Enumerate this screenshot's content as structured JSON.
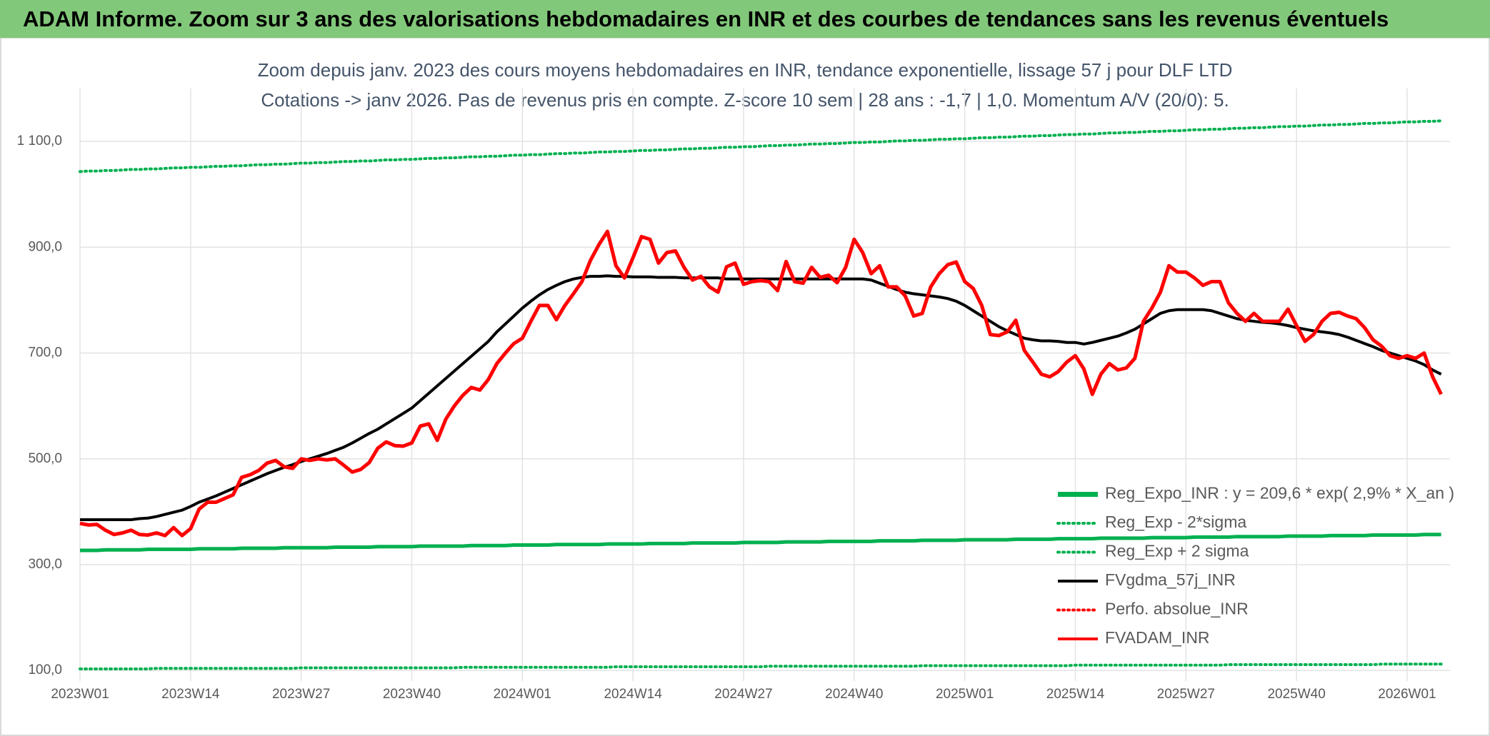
{
  "header": {
    "title": "ADAM Informe. Zoom sur 3 ans des valorisations hebdomadaires en INR et des courbes de tendances sans les revenus éventuels"
  },
  "chart_data": {
    "type": "line",
    "title": "Zoom depuis janv. 2023 des cours moyens hebdomadaires en INR, tendance exponentielle, lissage 57 j pour DLF LTD",
    "subtitle": "Cotations -> janv 2026. Pas de revenus pris en compte. Z-score 10 sem | 28 ans : -1,7 | 1,0. Momentum A/V (20/0): 5.",
    "ylim": [
      80,
      1200
    ],
    "yticks": [
      {
        "value": 100,
        "label": "100,0"
      },
      {
        "value": 300,
        "label": "300,0"
      },
      {
        "value": 500,
        "label": "500,0"
      },
      {
        "value": 700,
        "label": "700,0"
      },
      {
        "value": 900,
        "label": "900,0"
      },
      {
        "value": 1100,
        "label": "1 100,0"
      }
    ],
    "grid": true,
    "legend_position": "bottom-right",
    "categories": [
      "2023W01",
      null,
      null,
      null,
      null,
      null,
      null,
      null,
      null,
      null,
      null,
      null,
      null,
      "2023W14",
      null,
      null,
      null,
      null,
      null,
      null,
      null,
      null,
      null,
      null,
      null,
      null,
      "2023W27",
      null,
      null,
      null,
      null,
      null,
      null,
      null,
      null,
      null,
      null,
      null,
      null,
      "2023W40",
      null,
      null,
      null,
      null,
      null,
      null,
      null,
      null,
      null,
      null,
      null,
      null,
      "2024W01",
      null,
      null,
      null,
      null,
      null,
      null,
      null,
      null,
      null,
      null,
      null,
      null,
      "2024W14",
      null,
      null,
      null,
      null,
      null,
      null,
      null,
      null,
      null,
      null,
      null,
      null,
      "2024W27",
      null,
      null,
      null,
      null,
      null,
      null,
      null,
      null,
      null,
      null,
      null,
      null,
      "2024W40",
      null,
      null,
      null,
      null,
      null,
      null,
      null,
      null,
      null,
      null,
      null,
      null,
      "2025W01",
      null,
      null,
      null,
      null,
      null,
      null,
      null,
      null,
      null,
      null,
      null,
      null,
      "2025W14",
      null,
      null,
      null,
      null,
      null,
      null,
      null,
      null,
      null,
      null,
      null,
      null,
      "2025W27",
      null,
      null,
      null,
      null,
      null,
      null,
      null,
      null,
      null,
      null,
      null,
      null,
      "2025W40",
      null,
      null,
      null,
      null,
      null,
      null,
      null,
      null,
      null,
      null,
      null,
      null,
      "2026W01",
      null,
      null,
      null,
      null
    ],
    "series": [
      {
        "name": "Reg_Expo_INR : y = 209,6 * exp( 2,9% *  X_an )",
        "color": "#00b050",
        "line_style": "solid",
        "values": [
          327,
          327,
          327,
          328,
          328,
          328,
          328,
          328,
          329,
          329,
          329,
          329,
          329,
          329,
          330,
          330,
          330,
          330,
          330,
          331,
          331,
          331,
          331,
          331,
          332,
          332,
          332,
          332,
          332,
          332,
          333,
          333,
          333,
          333,
          333,
          334,
          334,
          334,
          334,
          334,
          335,
          335,
          335,
          335,
          335,
          335,
          336,
          336,
          336,
          336,
          336,
          337,
          337,
          337,
          337,
          337,
          338,
          338,
          338,
          338,
          338,
          338,
          339,
          339,
          339,
          339,
          339,
          340,
          340,
          340,
          340,
          340,
          341,
          341,
          341,
          341,
          341,
          341,
          342,
          342,
          342,
          342,
          342,
          343,
          343,
          343,
          343,
          343,
          344,
          344,
          344,
          344,
          344,
          344,
          345,
          345,
          345,
          345,
          345,
          346,
          346,
          346,
          346,
          346,
          347,
          347,
          347,
          347,
          347,
          347,
          348,
          348,
          348,
          348,
          348,
          349,
          349,
          349,
          349,
          349,
          350,
          350,
          350,
          350,
          350,
          350,
          351,
          351,
          351,
          351,
          351,
          352,
          352,
          352,
          352,
          352,
          353,
          353,
          353,
          353,
          353,
          353,
          354,
          354,
          354,
          354,
          354,
          355,
          355,
          355,
          355,
          355,
          356,
          356,
          356,
          356,
          356,
          356,
          357,
          357,
          357
        ]
      },
      {
        "name": "Reg_Exp - 2*sigma",
        "color": "#00b050",
        "line_style": "dotted",
        "values": [
          103,
          103,
          103,
          103,
          103,
          103,
          103,
          103,
          103,
          104,
          104,
          104,
          104,
          104,
          104,
          104,
          104,
          104,
          104,
          104,
          104,
          104,
          104,
          104,
          104,
          104,
          105,
          105,
          105,
          105,
          105,
          105,
          105,
          105,
          105,
          105,
          105,
          105,
          105,
          105,
          105,
          105,
          105,
          105,
          105,
          106,
          106,
          106,
          106,
          106,
          106,
          106,
          106,
          106,
          106,
          106,
          106,
          106,
          106,
          106,
          106,
          106,
          106,
          107,
          107,
          107,
          107,
          107,
          107,
          107,
          107,
          107,
          107,
          107,
          107,
          107,
          107,
          107,
          107,
          107,
          107,
          108,
          108,
          108,
          108,
          108,
          108,
          108,
          108,
          108,
          108,
          108,
          108,
          108,
          108,
          108,
          108,
          108,
          108,
          109,
          109,
          109,
          109,
          109,
          109,
          109,
          109,
          109,
          109,
          109,
          109,
          109,
          109,
          109,
          109,
          109,
          109,
          110,
          110,
          110,
          110,
          110,
          110,
          110,
          110,
          110,
          110,
          110,
          110,
          110,
          110,
          110,
          110,
          110,
          110,
          111,
          111,
          111,
          111,
          111,
          111,
          111,
          111,
          111,
          111,
          111,
          111,
          111,
          111,
          111,
          111,
          111,
          111,
          112,
          112,
          112,
          112,
          112,
          112,
          112,
          112
        ]
      },
      {
        "name": "Reg_Exp + 2 sigma",
        "color": "#00b050",
        "line_style": "dotted",
        "values": [
          1043,
          1044,
          1044,
          1045,
          1045,
          1046,
          1047,
          1047,
          1048,
          1048,
          1049,
          1050,
          1050,
          1051,
          1051,
          1052,
          1053,
          1053,
          1054,
          1054,
          1055,
          1056,
          1056,
          1057,
          1057,
          1058,
          1059,
          1059,
          1060,
          1060,
          1061,
          1062,
          1062,
          1063,
          1063,
          1064,
          1065,
          1065,
          1066,
          1066,
          1067,
          1068,
          1068,
          1069,
          1069,
          1070,
          1071,
          1071,
          1072,
          1072,
          1073,
          1074,
          1074,
          1075,
          1075,
          1076,
          1077,
          1077,
          1078,
          1078,
          1079,
          1080,
          1080,
          1081,
          1081,
          1082,
          1083,
          1083,
          1084,
          1084,
          1085,
          1086,
          1086,
          1087,
          1087,
          1088,
          1089,
          1089,
          1090,
          1090,
          1091,
          1092,
          1092,
          1093,
          1093,
          1094,
          1095,
          1095,
          1096,
          1096,
          1097,
          1098,
          1098,
          1099,
          1099,
          1100,
          1101,
          1101,
          1102,
          1102,
          1103,
          1104,
          1104,
          1105,
          1105,
          1106,
          1107,
          1107,
          1108,
          1108,
          1109,
          1110,
          1110,
          1111,
          1111,
          1112,
          1113,
          1113,
          1114,
          1114,
          1115,
          1116,
          1116,
          1117,
          1117,
          1118,
          1119,
          1119,
          1120,
          1120,
          1121,
          1122,
          1122,
          1123,
          1123,
          1124,
          1125,
          1125,
          1126,
          1126,
          1127,
          1128,
          1128,
          1129,
          1129,
          1130,
          1131,
          1131,
          1132,
          1132,
          1133,
          1134,
          1134,
          1135,
          1135,
          1136,
          1137,
          1137,
          1138,
          1138,
          1139
        ]
      },
      {
        "name": "FVgdma_57j_INR",
        "color": "#000000",
        "line_style": "solid",
        "values": [
          385,
          385,
          385,
          385,
          385,
          385,
          385,
          387,
          388,
          391,
          395,
          399,
          403,
          410,
          418,
          424,
          430,
          437,
          444,
          451,
          458,
          465,
          472,
          478,
          484,
          489,
          495,
          500,
          505,
          510,
          516,
          522,
          530,
          539,
          548,
          556,
          566,
          576,
          586,
          596,
          610,
          624,
          638,
          652,
          666,
          680,
          694,
          708,
          722,
          740,
          755,
          770,
          785,
          798,
          810,
          820,
          828,
          835,
          840,
          843,
          845,
          845,
          846,
          845,
          845,
          844,
          844,
          844,
          843,
          843,
          843,
          842,
          842,
          842,
          842,
          842,
          840,
          840,
          840,
          840,
          840,
          840,
          840,
          840,
          840,
          840,
          840,
          840,
          840,
          840,
          840,
          840,
          840,
          838,
          832,
          826,
          820,
          815,
          812,
          810,
          808,
          806,
          803,
          798,
          790,
          780,
          770,
          760,
          750,
          742,
          735,
          728,
          725,
          723,
          723,
          722,
          720,
          720,
          717,
          720,
          724,
          728,
          732,
          738,
          745,
          755,
          765,
          775,
          780,
          782,
          782,
          782,
          782,
          780,
          775,
          770,
          765,
          762,
          760,
          758,
          757,
          755,
          752,
          748,
          745,
          742,
          740,
          738,
          735,
          730,
          724,
          718,
          712,
          705,
          700,
          695,
          690,
          685,
          678,
          668,
          660
        ]
      },
      {
        "name": "Perfo. absolue_INR",
        "color": "#ff0000",
        "line_style": "dotted",
        "values": [
          null,
          null,
          null,
          null,
          null,
          null,
          null,
          null,
          null,
          null,
          null,
          null,
          null,
          null,
          null,
          null,
          null,
          null,
          null,
          null,
          null,
          null,
          null,
          null,
          null,
          null,
          null,
          null,
          null,
          null,
          null,
          null,
          null,
          null,
          null,
          null,
          null,
          null,
          null,
          null,
          null,
          null,
          null,
          null,
          null,
          null,
          null,
          null,
          null,
          null,
          null,
          null,
          null,
          null,
          null,
          null,
          null,
          null,
          null,
          null,
          null,
          null,
          null,
          null,
          null,
          null,
          null,
          null,
          null,
          null,
          null,
          null,
          null,
          null,
          null,
          null,
          null,
          null,
          null,
          null,
          null,
          null,
          null,
          null,
          null,
          null,
          null,
          null,
          null,
          null,
          null,
          null,
          null,
          null,
          null,
          null,
          null,
          null,
          null,
          null,
          null,
          null,
          null,
          null,
          null,
          null,
          null,
          null,
          null,
          null,
          null,
          null,
          null,
          null,
          null,
          null,
          null,
          null,
          null,
          null,
          null,
          null,
          null,
          null,
          null,
          null,
          null,
          null,
          null,
          null,
          null,
          null,
          null,
          null,
          null,
          null,
          null,
          null,
          null,
          null,
          null,
          null,
          null,
          null,
          null,
          null,
          null,
          null,
          null,
          null,
          null,
          null,
          null,
          null,
          null,
          null,
          null,
          null,
          null,
          null,
          null
        ]
      },
      {
        "name": "FVADAM_INR",
        "color": "#ff0000",
        "line_style": "solid",
        "values": [
          378,
          375,
          376,
          365,
          357,
          360,
          365,
          357,
          356,
          360,
          355,
          370,
          355,
          368,
          405,
          418,
          418,
          425,
          432,
          465,
          470,
          478,
          492,
          497,
          485,
          482,
          500,
          497,
          500,
          498,
          500,
          488,
          475,
          480,
          493,
          520,
          532,
          525,
          524,
          530,
          562,
          566,
          535,
          575,
          600,
          620,
          635,
          630,
          650,
          680,
          700,
          718,
          728,
          760,
          790,
          790,
          763,
          790,
          812,
          835,
          875,
          905,
          930,
          865,
          842,
          880,
          920,
          915,
          870,
          890,
          893,
          862,
          838,
          845,
          825,
          815,
          863,
          870,
          830,
          835,
          837,
          835,
          818,
          873,
          835,
          832,
          862,
          843,
          847,
          833,
          862,
          915,
          890,
          850,
          865,
          825,
          825,
          808,
          770,
          775,
          825,
          850,
          867,
          872,
          835,
          822,
          790,
          735,
          733,
          740,
          762,
          705,
          683,
          660,
          655,
          665,
          683,
          695,
          670,
          622,
          660,
          680,
          668,
          672,
          690,
          760,
          785,
          815,
          865,
          853,
          853,
          842,
          828,
          835,
          835,
          795,
          775,
          760,
          775,
          760,
          760,
          760,
          783,
          752,
          722,
          735,
          760,
          775,
          777,
          770,
          765,
          748,
          725,
          713,
          695,
          690,
          695,
          690,
          700,
          655,
          622
        ]
      }
    ]
  }
}
